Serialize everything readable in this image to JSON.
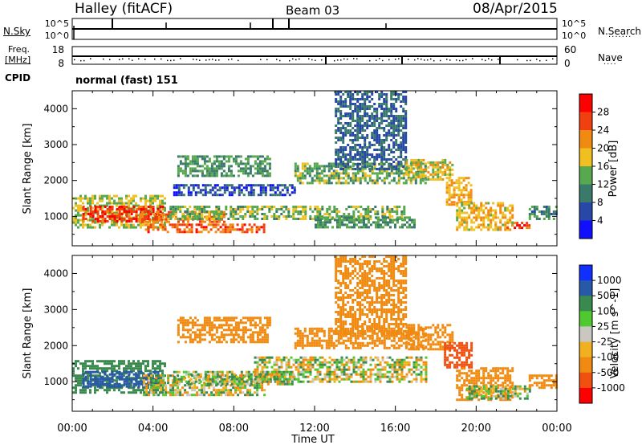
{
  "header": {
    "station": "Halley (fitACF)",
    "beam": "Beam 03",
    "date": "08/Apr/2015"
  },
  "left_labels": {
    "nsky": "N.Sky",
    "freq_line1": "Freq.",
    "freq_line2": "[MHz]",
    "cpid": "CPID"
  },
  "right_labels": {
    "nsearch": "N.Search",
    "nave": "Nave"
  },
  "strip_ticks": {
    "nsky_left": [
      "10^5",
      "10^0"
    ],
    "freq_left": [
      "18",
      "8"
    ],
    "nsearch_right": [
      "10^5",
      "10^0"
    ],
    "nave_right": [
      "60",
      "0"
    ]
  },
  "cpid_text": "normal (fast) 151",
  "colors": {
    "background": "#ffffff",
    "axis": "#000000"
  },
  "chart_data": [
    {
      "type": "heatmap",
      "title": "",
      "xlabel": "",
      "ylabel": "Slant Range [km]",
      "xlim": [
        0,
        24
      ],
      "ylim": [
        180,
        4500
      ],
      "yticks": [
        1000,
        2000,
        3000,
        4000
      ],
      "colorbar": {
        "label": "Power [dB]",
        "ticks": [
          "4",
          "8",
          "12",
          "16",
          "20",
          "24",
          "28"
        ],
        "colors": [
          "#1010ff",
          "#2848a8",
          "#3a7a6a",
          "#58a850",
          "#f0c020",
          "#f08a10",
          "#f04010",
          "#ff0000"
        ]
      },
      "regions": [
        {
          "x0": 0.0,
          "x1": 4.6,
          "r0": 700,
          "r1": 1600,
          "value": 16
        },
        {
          "x0": 0.5,
          "x1": 4.5,
          "r0": 850,
          "r1": 1300,
          "value": 27
        },
        {
          "x0": 3.3,
          "x1": 7.5,
          "r0": 850,
          "r1": 1150,
          "value": 24
        },
        {
          "x0": 3.6,
          "x1": 9.5,
          "r0": 550,
          "r1": 800,
          "value": 25
        },
        {
          "x0": 4.7,
          "x1": 16.5,
          "r0": 900,
          "r1": 1300,
          "value": 14
        },
        {
          "x0": 12.0,
          "x1": 17.0,
          "r0": 700,
          "r1": 1000,
          "value": 12
        },
        {
          "x0": 5.0,
          "x1": 11.0,
          "r0": 1600,
          "r1": 1900,
          "value": 6
        },
        {
          "x0": 5.2,
          "x1": 9.8,
          "r0": 2100,
          "r1": 2700,
          "value": 12
        },
        {
          "x0": 11.0,
          "x1": 17.5,
          "r0": 1900,
          "r1": 2500,
          "value": 14
        },
        {
          "x0": 13.0,
          "x1": 16.5,
          "r0": 2300,
          "r1": 4500,
          "value": 8
        },
        {
          "x0": 16.5,
          "x1": 18.8,
          "r0": 2000,
          "r1": 2600,
          "value": 18
        },
        {
          "x0": 18.5,
          "x1": 19.8,
          "r0": 1300,
          "r1": 2100,
          "value": 20
        },
        {
          "x0": 19.0,
          "x1": 21.8,
          "r0": 600,
          "r1": 1400,
          "value": 19
        },
        {
          "x0": 21.5,
          "x1": 22.6,
          "r0": 650,
          "r1": 850,
          "value": 26
        },
        {
          "x0": 22.6,
          "x1": 24.0,
          "r0": 900,
          "r1": 1300,
          "value": 10
        }
      ]
    },
    {
      "type": "heatmap",
      "title": "",
      "xlabel": "Time UT",
      "ylabel": "Slant Range [km]",
      "xlim": [
        0,
        24
      ],
      "ylim": [
        180,
        4500
      ],
      "yticks": [
        1000,
        2000,
        3000,
        4000
      ],
      "xticks": [
        "00:00",
        "04:00",
        "08:00",
        "12:00",
        "16:00",
        "20:00",
        "00:00"
      ],
      "colorbar": {
        "label": "Velocity [m s^-1]",
        "ticks": [
          "1000",
          "500",
          "100",
          "25",
          "-25",
          "-100",
          "-500",
          "-1000"
        ],
        "colors": [
          "#1030ff",
          "#2858a8",
          "#3a8a50",
          "#50c830",
          "#c8c8c0",
          "#f0b020",
          "#f08a10",
          "#f05010",
          "#ff0000"
        ]
      },
      "regions": [
        {
          "x0": 0.0,
          "x1": 4.6,
          "r0": 700,
          "r1": 1600,
          "value": 300
        },
        {
          "x0": 0.5,
          "x1": 4.5,
          "r0": 850,
          "r1": 1300,
          "value": 700
        },
        {
          "x0": 3.5,
          "x1": 9.5,
          "r0": 600,
          "r1": 1200,
          "value": 0
        },
        {
          "x0": 5.0,
          "x1": 11.0,
          "r0": 900,
          "r1": 1300,
          "value": 60
        },
        {
          "x0": 9.0,
          "x1": 17.5,
          "r0": 1000,
          "r1": 1700,
          "value": 0
        },
        {
          "x0": 5.2,
          "x1": 9.8,
          "r0": 2100,
          "r1": 2800,
          "value": -300
        },
        {
          "x0": 11.0,
          "x1": 17.5,
          "r0": 1900,
          "r1": 2500,
          "value": -300
        },
        {
          "x0": 13.0,
          "x1": 16.5,
          "r0": 2300,
          "r1": 4500,
          "value": -300
        },
        {
          "x0": 16.5,
          "x1": 18.8,
          "r0": 1900,
          "r1": 2600,
          "value": -300
        },
        {
          "x0": 18.4,
          "x1": 19.8,
          "r0": 1400,
          "r1": 2100,
          "value": -700
        },
        {
          "x0": 19.0,
          "x1": 21.8,
          "r0": 500,
          "r1": 1400,
          "value": -300
        },
        {
          "x0": 19.5,
          "x1": 22.6,
          "r0": 500,
          "r1": 900,
          "value": 50
        },
        {
          "x0": 22.6,
          "x1": 24.0,
          "r0": 800,
          "r1": 1200,
          "value": -300
        }
      ]
    }
  ]
}
